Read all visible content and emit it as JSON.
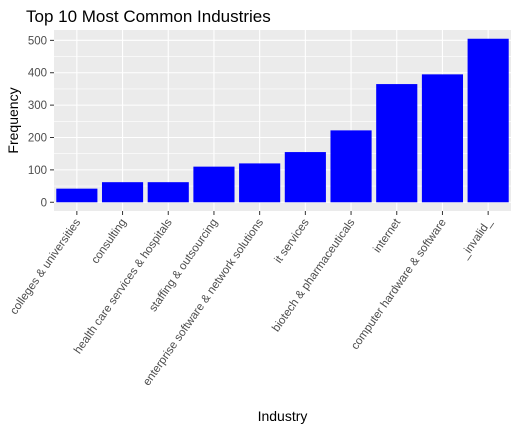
{
  "chart_data": {
    "type": "bar",
    "title": "Top 10 Most Common Industries",
    "xlabel": "Industry",
    "ylabel": "Frequency",
    "categories": [
      "colleges & universities",
      "consulting",
      "health care services & hospitals",
      "staffing & outsourcing",
      "enterprise software & network solutions",
      "it services",
      "biotech & pharmaceuticals",
      "internet",
      "computer hardware & software",
      "_invalid_"
    ],
    "values": [
      42,
      62,
      62,
      110,
      120,
      155,
      222,
      365,
      395,
      505
    ],
    "ylim": [
      -27,
      532
    ],
    "yticks": [
      0,
      100,
      200,
      300,
      400,
      500
    ],
    "bar_color": "#0000ff",
    "panel_background": "#ebebeb",
    "grid_color": "#ffffff",
    "grid": true,
    "legend": "none"
  }
}
